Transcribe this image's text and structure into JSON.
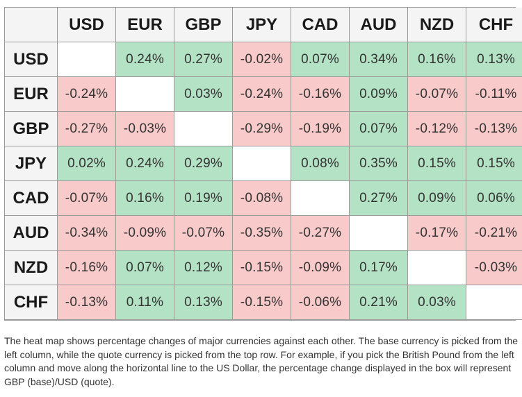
{
  "chart_data": {
    "type": "heatmap",
    "columns": [
      "USD",
      "EUR",
      "GBP",
      "JPY",
      "CAD",
      "AUD",
      "NZD",
      "CHF"
    ],
    "rows": [
      "USD",
      "EUR",
      "GBP",
      "JPY",
      "CAD",
      "AUD",
      "NZD",
      "CHF"
    ],
    "values": [
      [
        null,
        0.24,
        0.27,
        -0.02,
        0.07,
        0.34,
        0.16,
        0.13
      ],
      [
        -0.24,
        null,
        0.03,
        -0.24,
        -0.16,
        0.09,
        -0.07,
        -0.11
      ],
      [
        -0.27,
        -0.03,
        null,
        -0.29,
        -0.19,
        0.07,
        -0.12,
        -0.13
      ],
      [
        0.02,
        0.24,
        0.29,
        null,
        0.08,
        0.35,
        0.15,
        0.15
      ],
      [
        -0.07,
        0.16,
        0.19,
        -0.08,
        null,
        0.27,
        0.09,
        0.06
      ],
      [
        -0.34,
        -0.09,
        -0.07,
        -0.35,
        -0.27,
        null,
        -0.17,
        -0.21
      ],
      [
        -0.16,
        0.07,
        0.12,
        -0.15,
        -0.09,
        0.17,
        null,
        -0.03
      ],
      [
        -0.13,
        0.11,
        0.13,
        -0.15,
        -0.06,
        0.21,
        0.03,
        null
      ]
    ],
    "unit": "%",
    "colors": {
      "positive": "#b3e2c5",
      "negative": "#f8caca",
      "diagonal": "#ffffff"
    }
  },
  "caption": "The heat map shows percentage changes of major currencies against each other. The base currency is picked from the left column, while the quote currency is picked from the top row. For example, if you pick the British Pound from the left column and move along the horizontal line to the US Dollar, the percentage change displayed in the box will represent GBP (base)/USD (quote)."
}
